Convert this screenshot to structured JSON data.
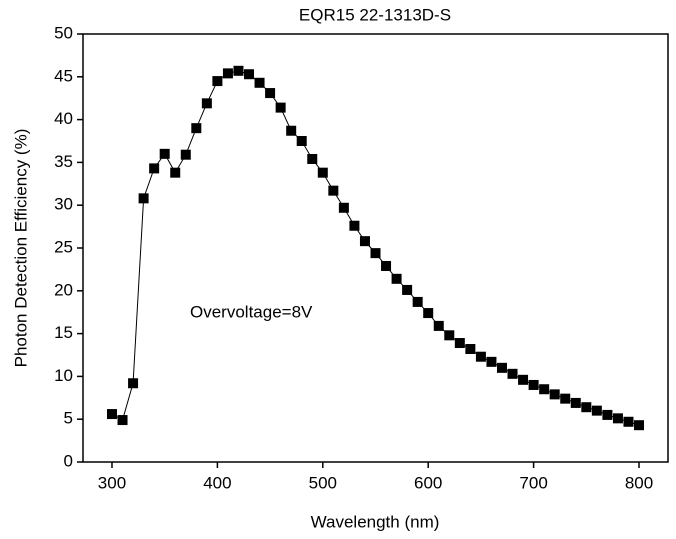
{
  "chart_data": {
    "type": "line",
    "title": "EQR15 22-1313D-S",
    "x_label": "Wavelength (nm)",
    "y_label": "Photon  Detection  Efficiency (%)",
    "annotation": "Overvoltage=8V",
    "x": [
      300,
      310,
      320,
      330,
      340,
      350,
      360,
      370,
      380,
      390,
      400,
      410,
      420,
      430,
      440,
      450,
      460,
      470,
      480,
      490,
      500,
      510,
      520,
      530,
      540,
      550,
      560,
      570,
      580,
      590,
      600,
      610,
      620,
      630,
      640,
      650,
      660,
      670,
      680,
      690,
      700,
      710,
      720,
      730,
      740,
      750,
      760,
      770,
      780,
      790,
      800
    ],
    "series": [
      {
        "color": "#000000",
        "values": [
          5.6,
          4.9,
          9.2,
          30.8,
          34.3,
          36.0,
          33.8,
          35.9,
          39.0,
          41.9,
          44.5,
          45.4,
          45.7,
          45.3,
          44.3,
          43.1,
          41.4,
          38.7,
          37.5,
          35.4,
          33.8,
          31.7,
          29.7,
          27.6,
          25.8,
          24.4,
          22.9,
          21.4,
          20.1,
          18.7,
          17.4,
          15.9,
          14.8,
          13.9,
          13.2,
          12.3,
          11.7,
          11.0,
          10.3,
          9.6,
          9.0,
          8.5,
          7.9,
          7.4,
          6.9,
          6.4,
          6.0,
          5.5,
          5.1,
          4.7,
          4.3
        ]
      }
    ],
    "xlim": [
      272.5,
      827.5
    ],
    "xticks": [
      300,
      400,
      500,
      600,
      700,
      800
    ],
    "ylim": [
      0,
      50
    ],
    "yticks": [
      0,
      5,
      10,
      15,
      20,
      25,
      30,
      35,
      40,
      45,
      50
    ]
  }
}
